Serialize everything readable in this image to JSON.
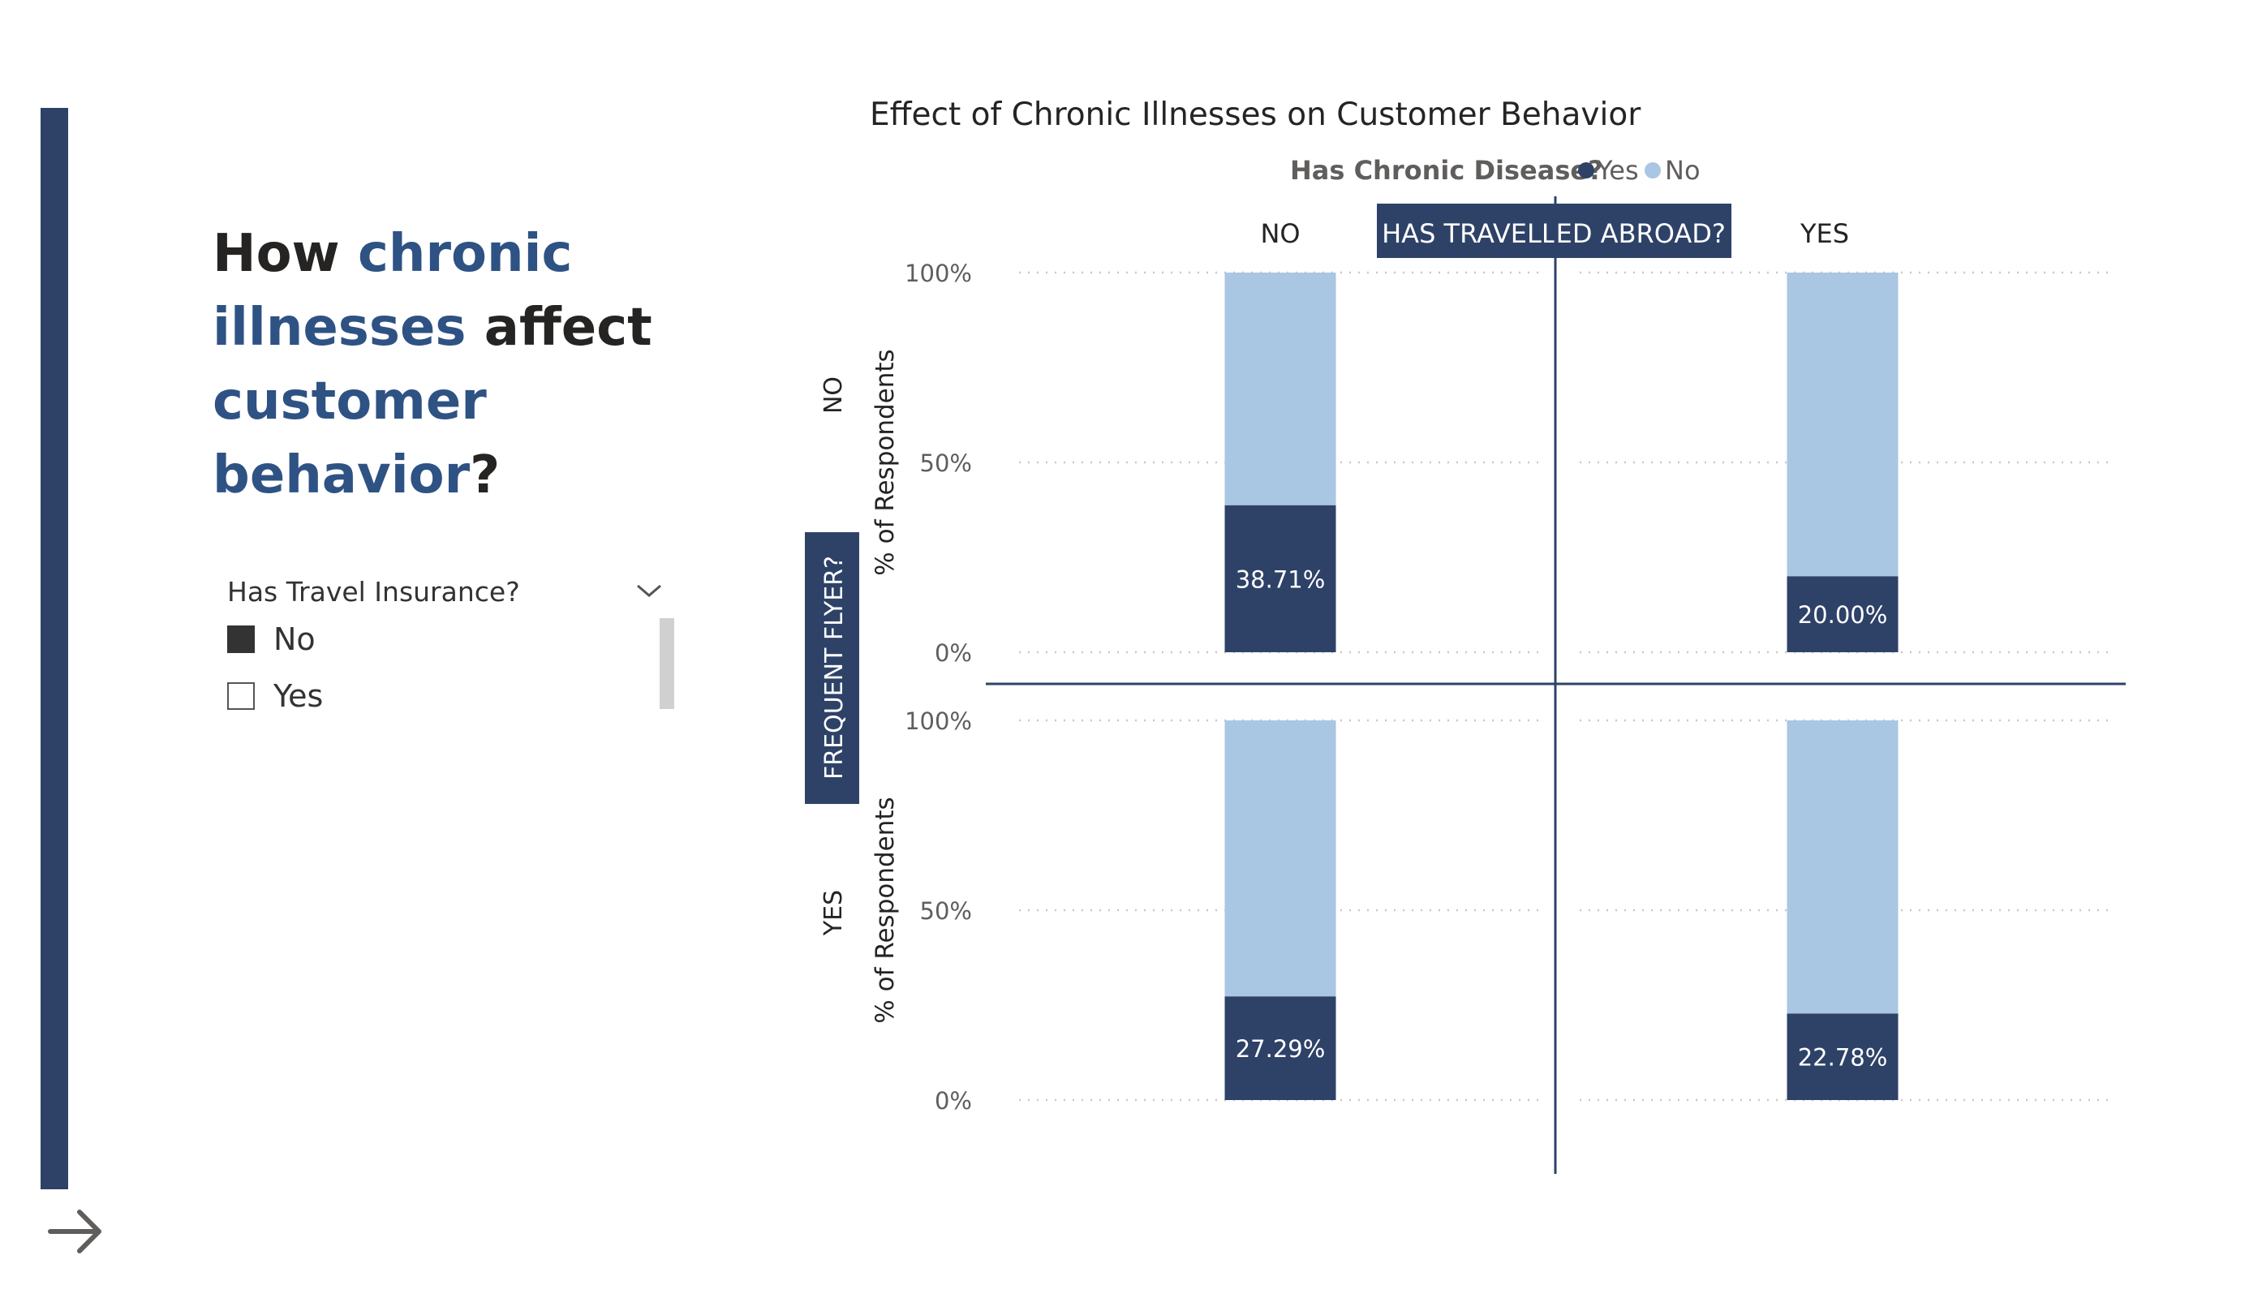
{
  "headline": {
    "w1": "How ",
    "w2": "chronic",
    "w3": "illnesses",
    "w4": " affect",
    "w5": "customer",
    "w6": "behavior",
    "w7": "?"
  },
  "slicer": {
    "title": "Has Travel Insurance?",
    "options": [
      {
        "label": "No",
        "checked": true
      },
      {
        "label": "Yes",
        "checked": false
      }
    ]
  },
  "colors": {
    "accent": "#2e4268",
    "yes": "#2e4268",
    "no": "#a9c6e3",
    "headline_highlight": "#2e5283"
  },
  "chart_data": {
    "type": "bar",
    "title": "Effect of Chronic Illnesses on Customer Behavior",
    "legend": {
      "title": "Has Chronic Disease?",
      "placement": "top",
      "items": [
        "Yes",
        "No"
      ]
    },
    "column_field": "HAS TRAVELLED ABROAD?",
    "column_values": [
      "NO",
      "YES"
    ],
    "row_field": "FREQUENT FLYER?",
    "row_values": [
      "NO",
      "YES"
    ],
    "ylabel": "% of Respondents",
    "yticks": [
      "100%",
      "50%",
      "0%"
    ],
    "ylim": [
      0,
      100
    ],
    "grid": true,
    "stacked": true,
    "panels": [
      {
        "row": "NO",
        "column": "NO",
        "yes": 38.71,
        "no": 61.29,
        "label": "38.71%"
      },
      {
        "row": "NO",
        "column": "YES",
        "yes": 20.0,
        "no": 80.0,
        "label": "20.00%"
      },
      {
        "row": "YES",
        "column": "NO",
        "yes": 27.29,
        "no": 72.71,
        "label": "27.29%"
      },
      {
        "row": "YES",
        "column": "YES",
        "yes": 22.78,
        "no": 77.22,
        "label": "22.78%"
      }
    ]
  }
}
